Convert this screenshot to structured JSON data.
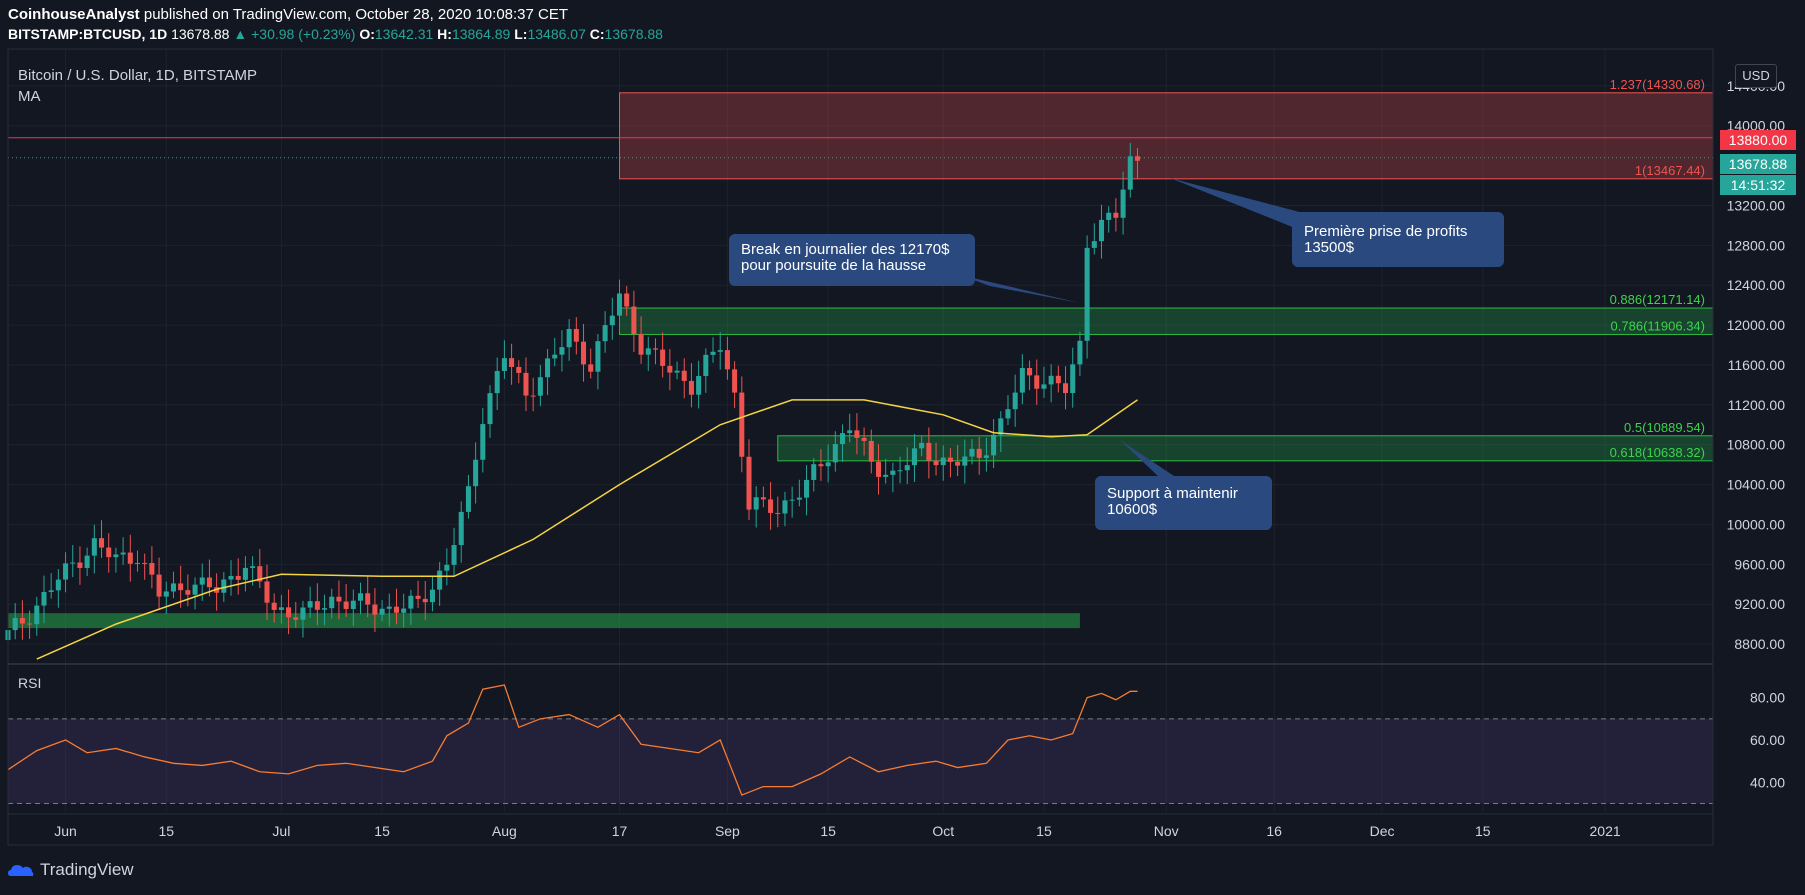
{
  "header": {
    "line1_author": "CoinhouseAnalyst",
    "line1_rest": "published on TradingView.com, October 28, 2020 10:08:37 CET",
    "symbol": "BITSTAMP:BTCUSD, 1D",
    "last": "13678.88",
    "change": "+30.98 (+0.23%)",
    "o_label": "O:",
    "o": "13642.31",
    "h_label": "H:",
    "h": "13864.89",
    "l_label": "L:",
    "l": "13486.07",
    "c_label": "C:",
    "c": "13678.88"
  },
  "pane": {
    "title": "Bitcoin / U.S. Dollar, 1D, BITSTAMP",
    "indicator": "MA",
    "currency": "USD",
    "rsi_label": "RSI"
  },
  "price_tags": {
    "resistance": "13880.00",
    "last": "13678.88",
    "countdown": "14:51:32"
  },
  "fib_labels": [
    "1.237(14330.68)",
    "1(13467.44)",
    "0.886(12171.14)",
    "0.786(11906.34)",
    "0.5(10889.54)",
    "0.618(10638.32)"
  ],
  "callouts": {
    "break_line1": "Break en journalier des 12170$",
    "break_line2": "pour poursuite de la hausse",
    "profit_line1": "Première prise de profits",
    "profit_line2": "13500$",
    "support_line1": "Support à maintenir",
    "support_line2": "10600$"
  },
  "footer": {
    "brand": "TradingView"
  },
  "colors": {
    "background": "#131722",
    "up": "#26a69a",
    "down": "#ef5350",
    "ma": "#f5d442",
    "rsi": "#f57c32",
    "callout": "#2a4a7f"
  },
  "chart_data": {
    "type": "candlestick",
    "title": "Bitcoin / U.S. Dollar, 1D, BITSTAMP",
    "y_ticks": [
      14400,
      14000,
      13200,
      12800,
      12400,
      12000,
      11600,
      11200,
      10800,
      10400,
      10000,
      9600,
      9200,
      8800
    ],
    "y_tick_labels": [
      "14400.00",
      "14000.00",
      "13200.00",
      "12800.00",
      "12400.00",
      "12000.00",
      "11600.00",
      "11200.00",
      "10800.00",
      "10400.00",
      "10000.00",
      "9600.00",
      "9200.00",
      "8800.00"
    ],
    "ylim": [
      8620,
      14770
    ],
    "x_labels": [
      {
        "label": "Jun",
        "date": "2020-06-01"
      },
      {
        "label": "15",
        "date": "2020-06-15"
      },
      {
        "label": "Jul",
        "date": "2020-07-01"
      },
      {
        "label": "15",
        "date": "2020-07-15"
      },
      {
        "label": "Aug",
        "date": "2020-08-01"
      },
      {
        "label": "17",
        "date": "2020-08-17"
      },
      {
        "label": "Sep",
        "date": "2020-09-01"
      },
      {
        "label": "15",
        "date": "2020-09-15"
      },
      {
        "label": "Oct",
        "date": "2020-10-01"
      },
      {
        "label": "15",
        "date": "2020-10-15"
      },
      {
        "label": "Nov",
        "date": "2020-11-01"
      },
      {
        "label": "16",
        "date": "2020-11-16"
      },
      {
        "label": "Dec",
        "date": "2020-12-01"
      },
      {
        "label": "15",
        "date": "2020-12-15"
      },
      {
        "label": "2021",
        "date": "2021-01-01"
      }
    ],
    "xlim": [
      "2020-05-24",
      "2021-01-16"
    ],
    "close_series": [
      [
        "2020-05-24",
        8900
      ],
      [
        "2020-05-27",
        9100
      ],
      [
        "2020-05-31",
        9450
      ],
      [
        "2020-06-02",
        9600
      ],
      [
        "2020-06-05",
        9800
      ],
      [
        "2020-06-08",
        9650
      ],
      [
        "2020-06-11",
        9700
      ],
      [
        "2020-06-14",
        9300
      ],
      [
        "2020-06-18",
        9400
      ],
      [
        "2020-06-22",
        9350
      ],
      [
        "2020-06-26",
        9600
      ],
      [
        "2020-06-30",
        9150
      ],
      [
        "2020-07-04",
        9100
      ],
      [
        "2020-07-08",
        9250
      ],
      [
        "2020-07-12",
        9200
      ],
      [
        "2020-07-16",
        9150
      ],
      [
        "2020-07-20",
        9200
      ],
      [
        "2020-07-24",
        9600
      ],
      [
        "2020-07-27",
        10300
      ],
      [
        "2020-07-29",
        11100
      ],
      [
        "2020-08-01",
        11700
      ],
      [
        "2020-08-04",
        11300
      ],
      [
        "2020-08-07",
        11600
      ],
      [
        "2020-08-10",
        11900
      ],
      [
        "2020-08-13",
        11600
      ],
      [
        "2020-08-17",
        12300
      ],
      [
        "2020-08-20",
        11800
      ],
      [
        "2020-08-23",
        11600
      ],
      [
        "2020-08-27",
        11400
      ],
      [
        "2020-08-31",
        11800
      ],
      [
        "2020-09-02",
        11300
      ],
      [
        "2020-09-04",
        10200
      ],
      [
        "2020-09-08",
        10150
      ],
      [
        "2020-09-12",
        10400
      ],
      [
        "2020-09-15",
        10700
      ],
      [
        "2020-09-18",
        11000
      ],
      [
        "2020-09-21",
        10600
      ],
      [
        "2020-09-24",
        10500
      ],
      [
        "2020-09-28",
        10750
      ],
      [
        "2020-10-02",
        10600
      ],
      [
        "2020-10-06",
        10700
      ],
      [
        "2020-10-09",
        11000
      ],
      [
        "2020-10-12",
        11500
      ],
      [
        "2020-10-15",
        11450
      ],
      [
        "2020-10-18",
        11350
      ],
      [
        "2020-10-20",
        11800
      ],
      [
        "2020-10-21",
        12850
      ],
      [
        "2020-10-23",
        13000
      ],
      [
        "2020-10-25",
        13100
      ],
      [
        "2020-10-27",
        13649
      ],
      [
        "2020-10-28",
        13678.88
      ]
    ],
    "moving_average": [
      [
        "2020-05-28",
        8650
      ],
      [
        "2020-06-08",
        9000
      ],
      [
        "2020-06-22",
        9350
      ],
      [
        "2020-07-01",
        9500
      ],
      [
        "2020-07-15",
        9480
      ],
      [
        "2020-07-25",
        9480
      ],
      [
        "2020-08-05",
        9850
      ],
      [
        "2020-08-17",
        10400
      ],
      [
        "2020-08-31",
        11000
      ],
      [
        "2020-09-10",
        11250
      ],
      [
        "2020-09-20",
        11250
      ],
      [
        "2020-10-01",
        11100
      ],
      [
        "2020-10-08",
        10920
      ],
      [
        "2020-10-16",
        10880
      ],
      [
        "2020-10-21",
        10900
      ],
      [
        "2020-10-28",
        11250
      ]
    ],
    "fib_levels": [
      {
        "ratio": "1.237",
        "value": 14330.68
      },
      {
        "ratio": "1",
        "value": 13467.44
      },
      {
        "ratio": "0.886",
        "value": 12171.14
      },
      {
        "ratio": "0.786",
        "value": 11906.34
      },
      {
        "ratio": "0.5",
        "value": 10889.54
      },
      {
        "ratio": "0.618",
        "value": 10638.32
      }
    ],
    "resistance_line": 13880,
    "rsi": {
      "y_ticks": [
        80,
        60,
        40
      ],
      "y_tick_labels": [
        "80.00",
        "60.00",
        "40.00"
      ],
      "ylim": [
        26,
        94
      ],
      "bands": [
        30,
        70
      ],
      "values": [
        [
          "2020-05-24",
          46
        ],
        [
          "2020-05-28",
          55
        ],
        [
          "2020-06-01",
          60
        ],
        [
          "2020-06-04",
          54
        ],
        [
          "2020-06-08",
          56
        ],
        [
          "2020-06-12",
          52
        ],
        [
          "2020-06-16",
          49
        ],
        [
          "2020-06-20",
          48
        ],
        [
          "2020-06-24",
          50
        ],
        [
          "2020-06-28",
          45
        ],
        [
          "2020-07-02",
          44
        ],
        [
          "2020-07-06",
          48
        ],
        [
          "2020-07-10",
          49
        ],
        [
          "2020-07-14",
          47
        ],
        [
          "2020-07-18",
          45
        ],
        [
          "2020-07-22",
          50
        ],
        [
          "2020-07-24",
          62
        ],
        [
          "2020-07-27",
          68
        ],
        [
          "2020-07-29",
          84
        ],
        [
          "2020-08-01",
          86
        ],
        [
          "2020-08-03",
          66
        ],
        [
          "2020-08-06",
          70
        ],
        [
          "2020-08-10",
          72
        ],
        [
          "2020-08-14",
          66
        ],
        [
          "2020-08-17",
          72
        ],
        [
          "2020-08-20",
          58
        ],
        [
          "2020-08-24",
          56
        ],
        [
          "2020-08-28",
          54
        ],
        [
          "2020-08-31",
          60
        ],
        [
          "2020-09-03",
          34
        ],
        [
          "2020-09-06",
          38
        ],
        [
          "2020-09-10",
          38
        ],
        [
          "2020-09-14",
          44
        ],
        [
          "2020-09-18",
          52
        ],
        [
          "2020-09-22",
          45
        ],
        [
          "2020-09-26",
          48
        ],
        [
          "2020-09-30",
          50
        ],
        [
          "2020-10-03",
          47
        ],
        [
          "2020-10-07",
          49
        ],
        [
          "2020-10-10",
          60
        ],
        [
          "2020-10-13",
          62
        ],
        [
          "2020-10-16",
          60
        ],
        [
          "2020-10-19",
          63
        ],
        [
          "2020-10-21",
          80
        ],
        [
          "2020-10-23",
          82
        ],
        [
          "2020-10-25",
          79
        ],
        [
          "2020-10-27",
          83
        ],
        [
          "2020-10-28",
          83
        ]
      ]
    },
    "support_zone": [
      8960,
      9110
    ]
  }
}
